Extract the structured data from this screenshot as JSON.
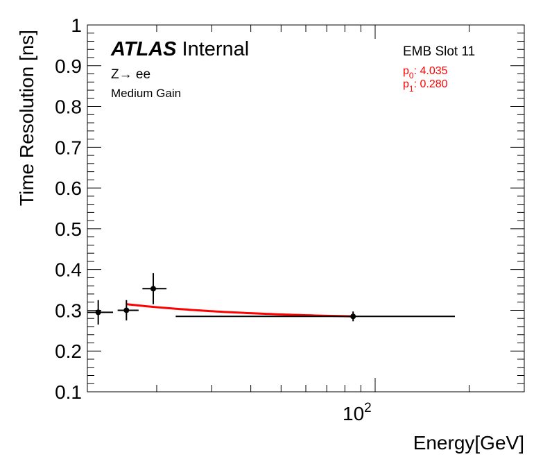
{
  "chart_data": {
    "type": "scatter",
    "xlabel": "Energy[GeV]",
    "ylabel": "Time Resolution [ns]",
    "xscale": "log",
    "xlim": [
      12,
      300
    ],
    "ylim": [
      0.1,
      1.0
    ],
    "y_ticks": [
      0.1,
      0.2,
      0.3,
      0.4,
      0.5,
      0.6,
      0.7,
      0.8,
      0.9,
      1.0
    ],
    "y_tick_labels": [
      "0.1",
      "0.2",
      "0.3",
      "0.4",
      "0.5",
      "0.6",
      "0.7",
      "0.8",
      "0.9",
      "1"
    ],
    "x_tick_label": {
      "base": "10",
      "exponent": "2",
      "value": 100
    },
    "points": [
      {
        "x": 13.0,
        "xlo": 12.0,
        "xhi": 14.5,
        "y": 0.295,
        "yerr": 0.03
      },
      {
        "x": 16.0,
        "xlo": 15.0,
        "xhi": 17.5,
        "y": 0.3,
        "yerr": 0.025
      },
      {
        "x": 19.5,
        "xlo": 18.0,
        "xhi": 21.5,
        "y": 0.353,
        "yerr": 0.038
      },
      {
        "x": 85.0,
        "xlo": 23.0,
        "xhi": 180.0,
        "y": 0.285,
        "yerr": 0.012
      }
    ],
    "fit": {
      "color": "#ff0000",
      "x_from": 16.0,
      "x_to": 85.0,
      "y_from": 0.315,
      "y_to": 0.285
    },
    "colors": {
      "points": "#000000",
      "fit": "#ff0000",
      "frame": "#000000"
    }
  },
  "labels": {
    "atlas": "ATLAS",
    "internal": "Internal",
    "process_z": "Z",
    "process_arrow": "→",
    "process_ee": " ee",
    "gain": "Medium Gain",
    "slot": "EMB Slot 11",
    "p0_name": "p",
    "p0_sub": "0",
    "p0_value": ": 4.035",
    "p1_name": "p",
    "p1_sub": "1",
    "p1_value": ": 0.280"
  }
}
